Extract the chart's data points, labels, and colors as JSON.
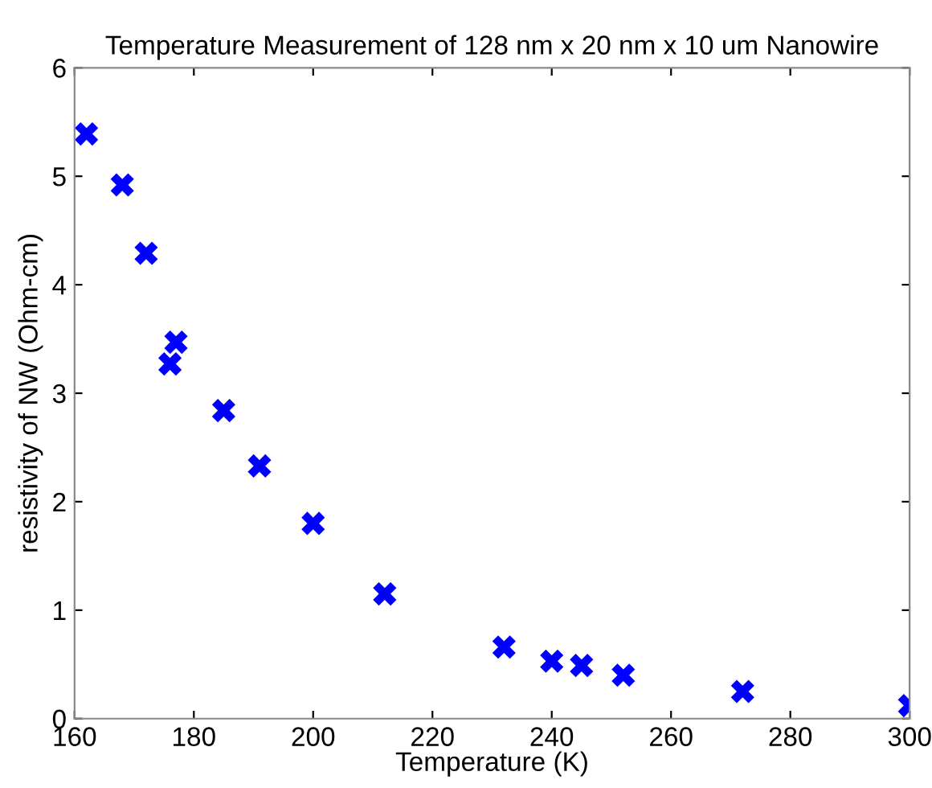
{
  "chart_data": {
    "type": "scatter",
    "title": "Temperature Measurement of 128 nm x 20 nm x 10 um Nanowire",
    "xlabel": "Temperature (K)",
    "ylabel": "resistivity of NW (Ohm-cm)",
    "x": [
      162,
      168,
      172,
      176,
      177,
      185,
      191,
      200,
      212,
      232,
      240,
      245,
      252,
      272,
      300
    ],
    "series": [
      {
        "color": "#0000ff",
        "values": [
          5.39,
          4.92,
          4.29,
          3.27,
          3.47,
          2.84,
          2.33,
          1.8,
          1.15,
          0.66,
          0.53,
          0.49,
          0.4,
          0.25,
          0.12
        ]
      }
    ],
    "marker": "cross",
    "xlim": [
      160,
      300
    ],
    "ylim": [
      0,
      6
    ],
    "xticks": [
      160,
      180,
      200,
      220,
      240,
      260,
      280,
      300
    ],
    "yticks": [
      0,
      1,
      2,
      3,
      4,
      5,
      6
    ],
    "grid": false,
    "legend": false
  }
}
